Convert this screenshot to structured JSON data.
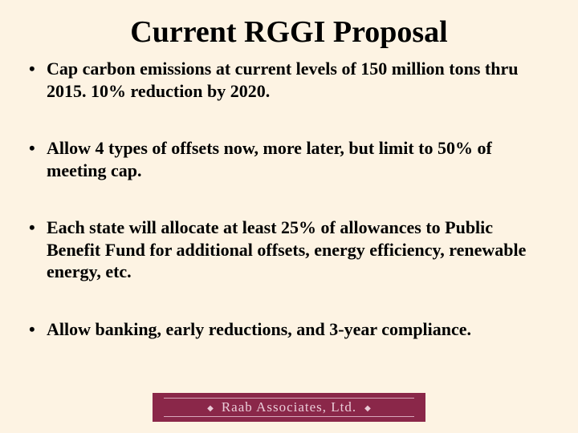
{
  "slide": {
    "background_color": "#fdf3e3",
    "text_color": "#000000",
    "title": "Current RGGI Proposal",
    "title_fontsize": 38,
    "bullet_fontsize": 22,
    "bullets": [
      "Cap carbon emissions at current levels of 150 million tons thru 2015.  10% reduction by 2020.",
      "Allow 4 types of offsets now, more later, but limit to 50% of meeting cap.",
      "Each state will allocate at least 25% of allowances to Public Benefit Fund for additional offsets, energy efficiency, renewable energy, etc.",
      "Allow banking, early reductions, and 3-year compliance."
    ],
    "logo": {
      "text": "Raab Associates, Ltd.",
      "background_color": "#8a2749",
      "text_color": "#e9cbd7",
      "rule_color": "#d8a8bb"
    }
  }
}
